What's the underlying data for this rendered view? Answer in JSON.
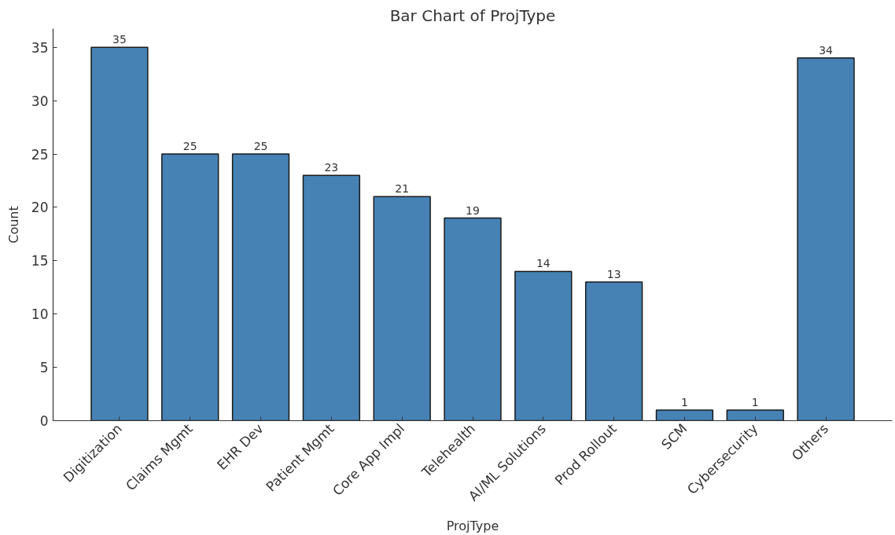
{
  "chart_data": {
    "type": "bar",
    "title": "Bar Chart of ProjType",
    "xlabel": "ProjType",
    "ylabel": "Count",
    "categories": [
      "Digitization",
      "Claims Mgmt",
      "EHR Dev",
      "Patient Mgmt",
      "Core App Impl",
      "Telehealth",
      "AI/ML Solutions",
      "Prod Rollout",
      "SCM",
      "Cybersecurity",
      "Others"
    ],
    "values": [
      35,
      25,
      25,
      23,
      21,
      19,
      14,
      13,
      1,
      1,
      34
    ],
    "color": "#4682b4",
    "ylim": [
      0,
      36.75
    ],
    "yticks": [
      0,
      5,
      10,
      15,
      20,
      25,
      30,
      35
    ],
    "data_labels": true
  }
}
